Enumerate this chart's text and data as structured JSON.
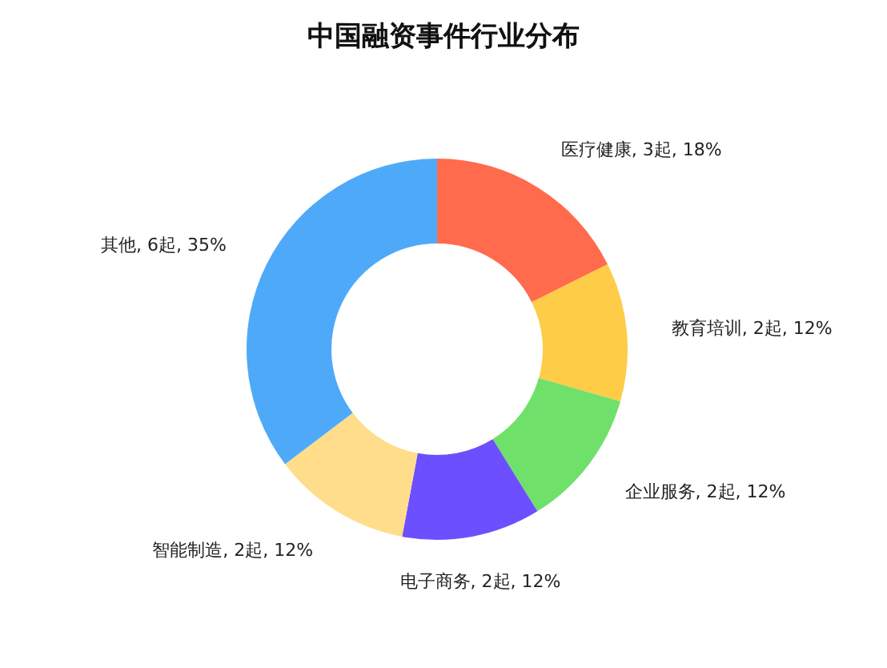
{
  "chart_data": {
    "type": "donut",
    "title": "中国融资事件行业分布",
    "categories": [
      "医疗健康",
      "教育培训",
      "企业服务",
      "电子商务",
      "智能制造",
      "其他"
    ],
    "values": [
      3,
      2,
      2,
      2,
      2,
      6
    ],
    "value_labels": [
      "3起, 18%",
      "2起, 12%",
      "2起, 12%",
      "2起, 12%",
      "2起, 12%",
      "6起, 35%"
    ],
    "colors": [
      "#ff6b4c",
      "#ffcc47",
      "#6fe06a",
      "#6c4fff",
      "#ffdd8a",
      "#4eaaf9"
    ]
  }
}
